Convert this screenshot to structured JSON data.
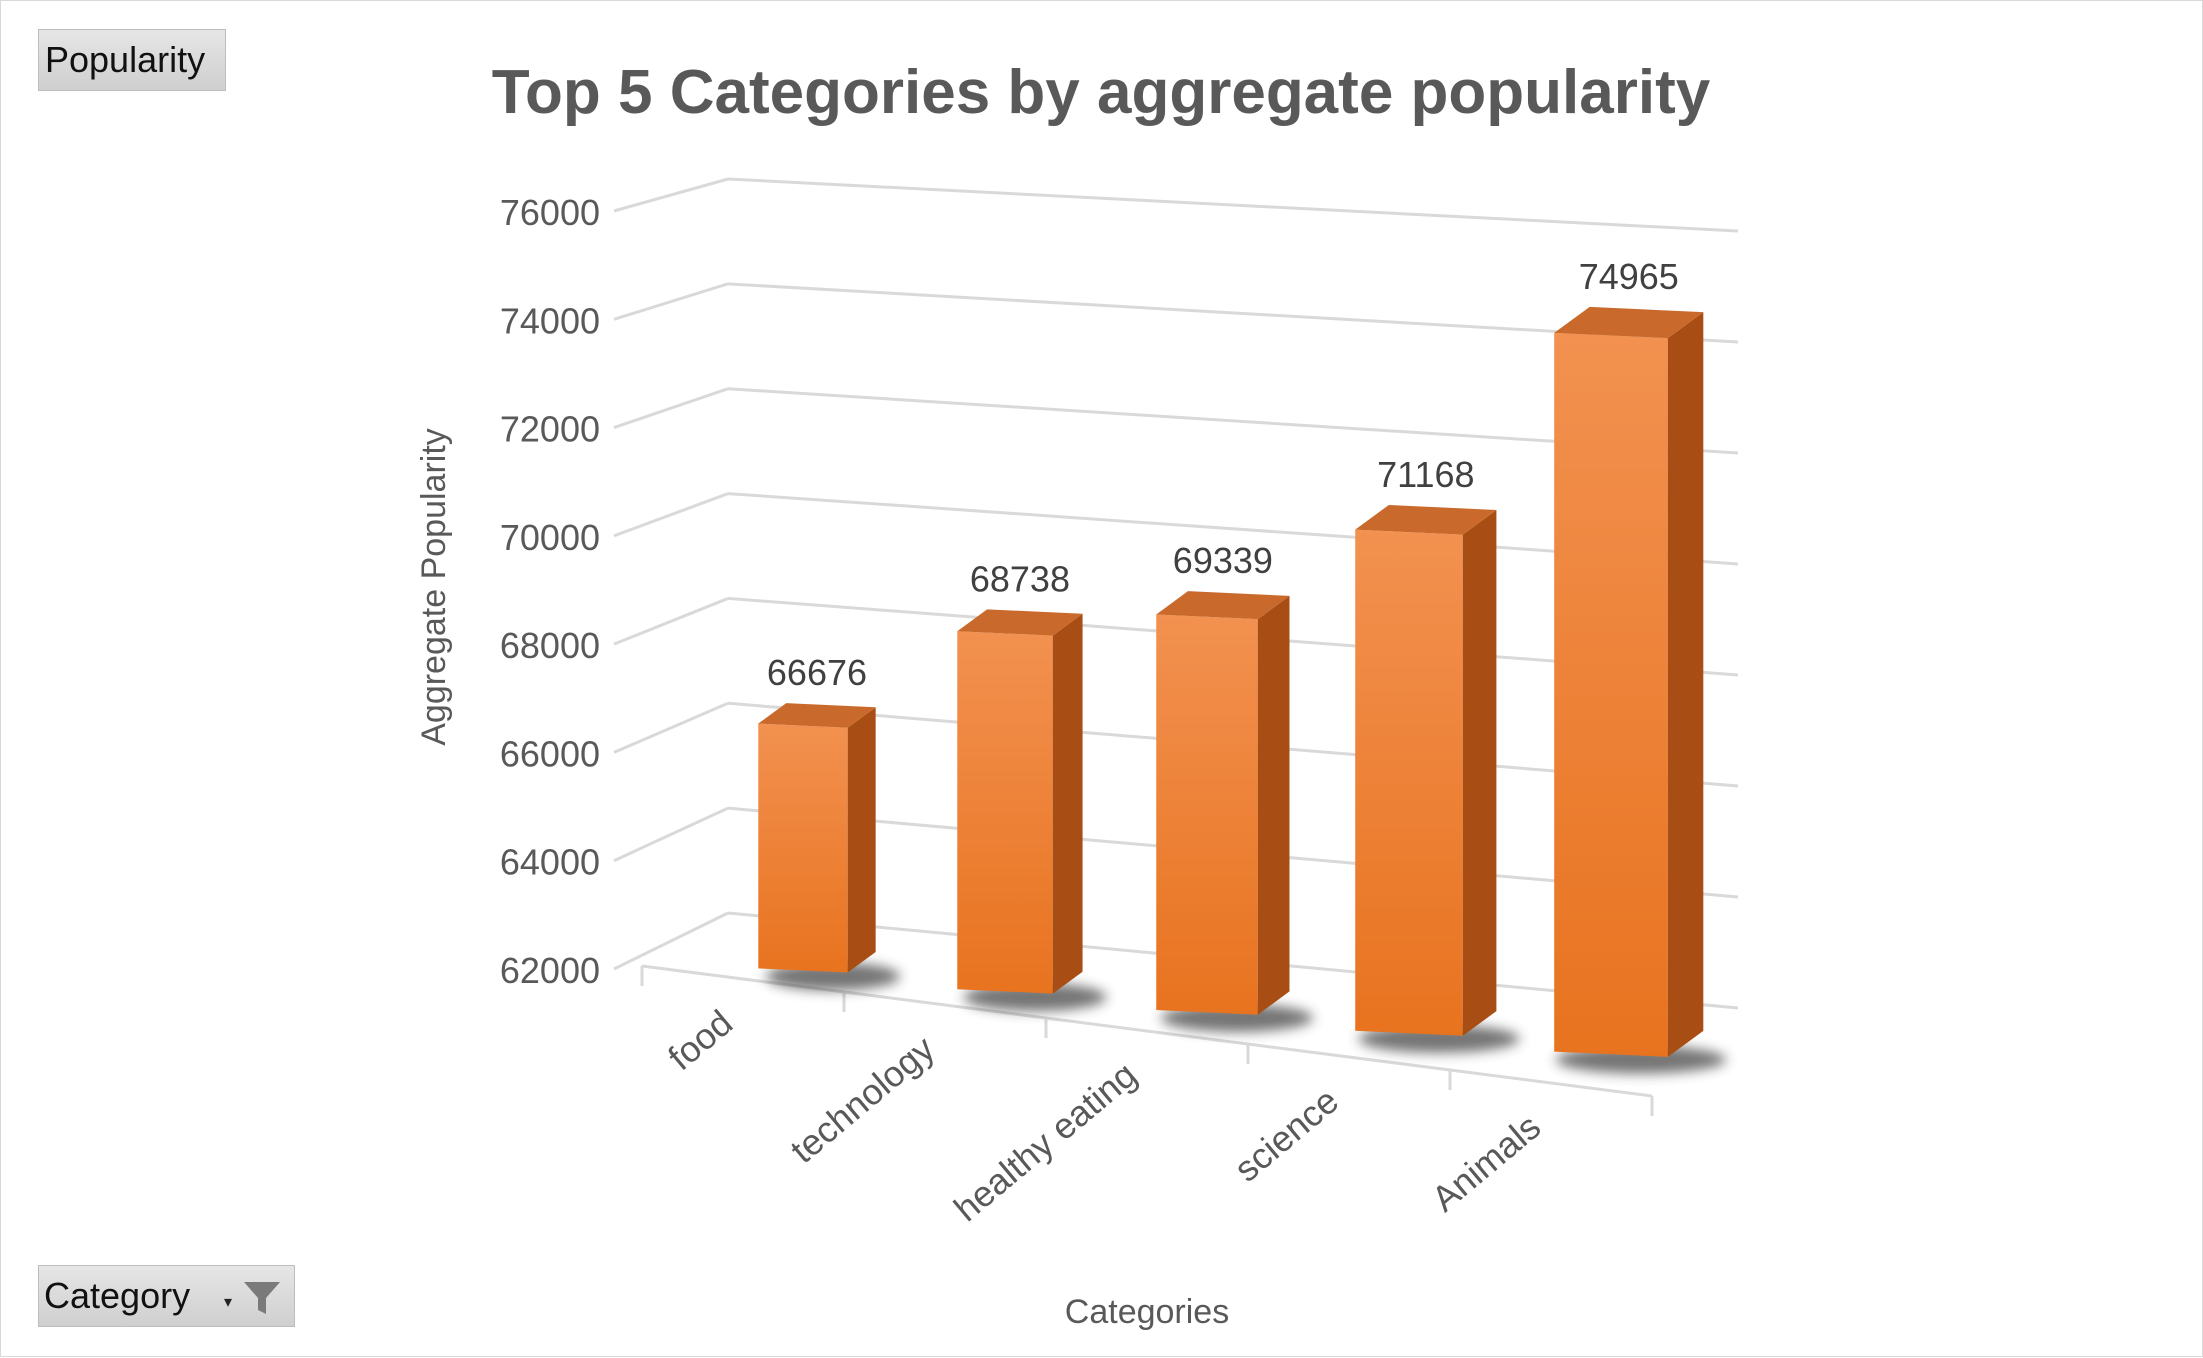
{
  "pivot_buttons": {
    "value_field": "Popularity",
    "axis_field": "Category",
    "filter_icon": "funnel-icon",
    "dropdown_icon": "chevron-down-icon"
  },
  "colors": {
    "bar_front_top": "#f29150",
    "bar_front_bottom": "#e8731f",
    "bar_side": "#a84e14",
    "bar_top": "#c96a2c",
    "gridline": "#d9d9d9",
    "text": "#595959",
    "title": "#595959"
  },
  "chart_data": {
    "type": "bar",
    "title": "Top 5 Categories by aggregate popularity",
    "xlabel": "Categories",
    "ylabel": "Aggregate Popularity",
    "categories": [
      "food",
      "technology",
      "healthy eating",
      "science",
      "Animals"
    ],
    "values": [
      66676,
      68738,
      69339,
      71168,
      74965
    ],
    "ylim": [
      62000,
      76000
    ],
    "yticks": [
      "62000",
      "64000",
      "66000",
      "68000",
      "70000",
      "72000",
      "74000",
      "76000"
    ],
    "data_labels": [
      "66676",
      "68738",
      "69339",
      "71168",
      "74965"
    ],
    "grid": true,
    "style": "3d-column"
  }
}
